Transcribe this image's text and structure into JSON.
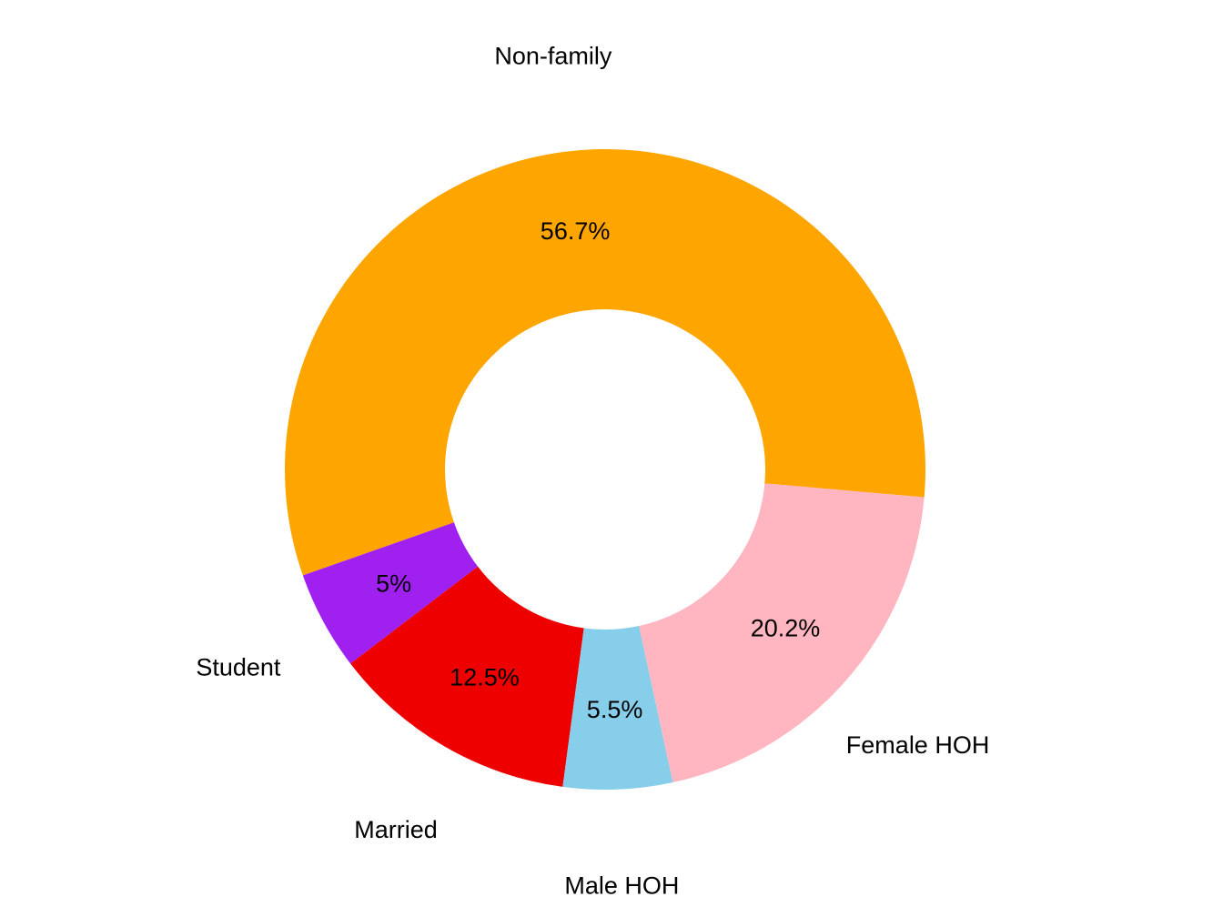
{
  "chart_data": {
    "type": "pie",
    "variant": "donut",
    "categories": [
      "Non-family",
      "Student",
      "Married",
      "Male HOH",
      "Female HOH"
    ],
    "values": [
      56.7,
      5.0,
      12.5,
      5.5,
      20.2
    ],
    "value_labels": [
      "56.7%",
      "5%",
      "12.5%",
      "5.5%",
      "20.2%"
    ],
    "colors": [
      "#FFA500",
      "#A020F0",
      "#EE0000",
      "#87CEEB",
      "#FFB6C1"
    ],
    "units": "percent",
    "legend": "none",
    "grid": false
  }
}
